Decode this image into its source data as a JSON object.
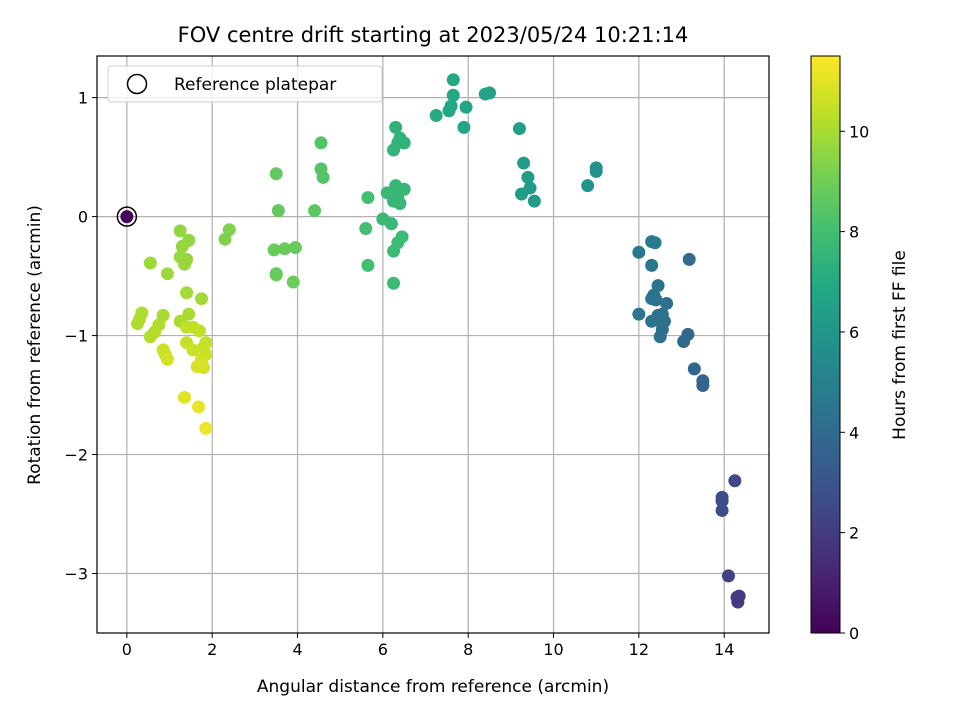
{
  "chart_data": {
    "type": "scatter",
    "title": "FOV centre drift starting at 2023/05/24 10:21:14",
    "xlabel": "Angular distance from reference (arcmin)",
    "ylabel": "Rotation from reference (arcmin)",
    "xlim": [
      -0.7,
      15.05
    ],
    "ylim": [
      -3.5,
      1.35
    ],
    "xticks": [
      0,
      2,
      4,
      6,
      8,
      10,
      12,
      14
    ],
    "yticks": [
      -3,
      -2,
      -1,
      0,
      1
    ],
    "grid": true,
    "legend": {
      "placement": "upper-left",
      "entries": [
        "Reference platepar"
      ]
    },
    "colorbar": {
      "label": "Hours from first FF file",
      "range": [
        0,
        11.5
      ],
      "ticks": [
        0,
        2,
        4,
        6,
        8,
        10
      ],
      "colormap": "viridis"
    },
    "reference_point": {
      "x": 0,
      "y": 0,
      "hours": 0.1
    },
    "series": [
      {
        "marker": "filled-circle",
        "points": [
          [
            14.3,
            -3.2,
            2.0
          ],
          [
            14.35,
            -3.19,
            2.0
          ],
          [
            14.32,
            -3.24,
            2.0
          ],
          [
            14.1,
            -3.02,
            2.2
          ],
          [
            14.25,
            -2.22,
            2.5
          ],
          [
            13.95,
            -2.36,
            2.7
          ],
          [
            13.95,
            -2.39,
            2.7
          ],
          [
            13.95,
            -2.47,
            2.7
          ],
          [
            13.5,
            -1.38,
            3.7
          ],
          [
            13.5,
            -1.42,
            3.7
          ],
          [
            13.3,
            -1.28,
            3.8
          ],
          [
            13.15,
            -0.99,
            3.9
          ],
          [
            13.05,
            -1.05,
            3.9
          ],
          [
            13.18,
            -0.36,
            4.0
          ],
          [
            12.65,
            -0.73,
            4.2
          ],
          [
            12.6,
            -0.88,
            4.2
          ],
          [
            12.55,
            -0.95,
            4.2
          ],
          [
            12.5,
            -1.01,
            4.2
          ],
          [
            12.55,
            -0.82,
            4.3
          ],
          [
            12.45,
            -0.83,
            4.3
          ],
          [
            12.3,
            -0.88,
            4.4
          ],
          [
            12.5,
            -0.88,
            4.3
          ],
          [
            12.45,
            -0.58,
            4.4
          ],
          [
            12.35,
            -0.66,
            4.4
          ],
          [
            12.3,
            -0.69,
            4.4
          ],
          [
            12.4,
            -0.7,
            4.4
          ],
          [
            12.0,
            -0.82,
            4.5
          ],
          [
            12.3,
            -0.41,
            4.6
          ],
          [
            12.0,
            -0.3,
            4.6
          ],
          [
            12.3,
            -0.21,
            4.7
          ],
          [
            12.38,
            -0.22,
            4.7
          ],
          [
            11.0,
            0.38,
            5.8
          ],
          [
            11.0,
            0.41,
            5.8
          ],
          [
            10.8,
            0.26,
            5.9
          ],
          [
            9.55,
            0.13,
            6.2
          ],
          [
            9.45,
            0.24,
            6.2
          ],
          [
            9.4,
            0.33,
            6.3
          ],
          [
            9.25,
            0.19,
            6.3
          ],
          [
            9.3,
            0.45,
            6.3
          ],
          [
            9.2,
            0.74,
            6.4
          ],
          [
            8.5,
            1.04,
            6.6
          ],
          [
            8.4,
            1.03,
            6.6
          ],
          [
            7.9,
            0.75,
            6.8
          ],
          [
            7.95,
            0.92,
            6.8
          ],
          [
            7.65,
            1.15,
            6.9
          ],
          [
            7.65,
            1.02,
            6.9
          ],
          [
            7.55,
            0.89,
            6.9
          ],
          [
            7.6,
            0.93,
            6.9
          ],
          [
            7.25,
            0.85,
            7.0
          ],
          [
            6.5,
            0.62,
            7.4
          ],
          [
            6.35,
            0.62,
            7.4
          ],
          [
            6.4,
            0.66,
            7.4
          ],
          [
            6.3,
            0.75,
            7.4
          ],
          [
            6.25,
            0.56,
            7.5
          ],
          [
            6.5,
            0.23,
            7.6
          ],
          [
            6.3,
            0.26,
            7.6
          ],
          [
            6.35,
            0.16,
            7.6
          ],
          [
            6.2,
            0.2,
            7.6
          ],
          [
            6.4,
            0.11,
            7.6
          ],
          [
            6.25,
            0.13,
            7.6
          ],
          [
            6.1,
            0.2,
            7.7
          ],
          [
            6.2,
            -0.06,
            7.7
          ],
          [
            6.0,
            -0.02,
            7.7
          ],
          [
            6.45,
            -0.17,
            7.8
          ],
          [
            6.35,
            -0.22,
            7.8
          ],
          [
            6.25,
            -0.29,
            7.8
          ],
          [
            6.25,
            -0.56,
            7.8
          ],
          [
            5.65,
            0.16,
            8.0
          ],
          [
            5.6,
            -0.1,
            8.0
          ],
          [
            5.65,
            -0.41,
            8.0
          ],
          [
            4.55,
            0.62,
            8.4
          ],
          [
            4.55,
            0.4,
            8.4
          ],
          [
            4.6,
            0.33,
            8.4
          ],
          [
            4.4,
            0.05,
            8.5
          ],
          [
            3.5,
            0.36,
            8.7
          ],
          [
            3.55,
            0.05,
            8.7
          ],
          [
            3.45,
            -0.28,
            8.8
          ],
          [
            3.7,
            -0.27,
            8.8
          ],
          [
            3.95,
            -0.26,
            8.8
          ],
          [
            3.5,
            -0.48,
            8.8
          ],
          [
            3.5,
            -0.49,
            8.8
          ],
          [
            3.9,
            -0.55,
            8.9
          ],
          [
            2.4,
            -0.11,
            9.3
          ],
          [
            2.3,
            -0.19,
            9.3
          ],
          [
            1.45,
            -0.2,
            9.6
          ],
          [
            1.25,
            -0.12,
            9.6
          ],
          [
            1.3,
            -0.25,
            9.7
          ],
          [
            1.25,
            -0.34,
            9.7
          ],
          [
            1.35,
            -0.4,
            9.7
          ],
          [
            1.4,
            -0.36,
            9.7
          ],
          [
            0.55,
            -0.39,
            9.8
          ],
          [
            0.95,
            -0.48,
            9.8
          ],
          [
            1.75,
            -0.69,
            9.9
          ],
          [
            1.4,
            -0.64,
            9.9
          ],
          [
            1.45,
            -0.82,
            10.0
          ],
          [
            1.25,
            -0.88,
            10.0
          ],
          [
            0.85,
            -0.83,
            10.0
          ],
          [
            0.35,
            -0.81,
            10.1
          ],
          [
            0.3,
            -0.86,
            10.1
          ],
          [
            0.25,
            -0.9,
            10.1
          ],
          [
            0.75,
            -0.91,
            10.1
          ],
          [
            0.65,
            -0.97,
            10.2
          ],
          [
            0.55,
            -1.01,
            10.2
          ],
          [
            1.4,
            -0.93,
            10.4
          ],
          [
            1.55,
            -0.93,
            10.4
          ],
          [
            1.7,
            -0.96,
            10.4
          ],
          [
            1.4,
            -1.06,
            10.5
          ],
          [
            1.85,
            -1.06,
            10.5
          ],
          [
            1.8,
            -1.1,
            10.5
          ],
          [
            1.85,
            -1.16,
            10.6
          ],
          [
            1.75,
            -1.2,
            10.6
          ],
          [
            1.55,
            -1.12,
            10.6
          ],
          [
            0.85,
            -1.12,
            10.6
          ],
          [
            0.9,
            -1.16,
            10.6
          ],
          [
            0.95,
            -1.2,
            10.7
          ],
          [
            1.65,
            -1.26,
            10.8
          ],
          [
            1.8,
            -1.27,
            10.8
          ],
          [
            1.75,
            -1.22,
            10.8
          ],
          [
            1.35,
            -1.52,
            11.0
          ],
          [
            1.68,
            -1.6,
            11.1
          ],
          [
            1.85,
            -1.78,
            11.2
          ]
        ]
      }
    ]
  }
}
